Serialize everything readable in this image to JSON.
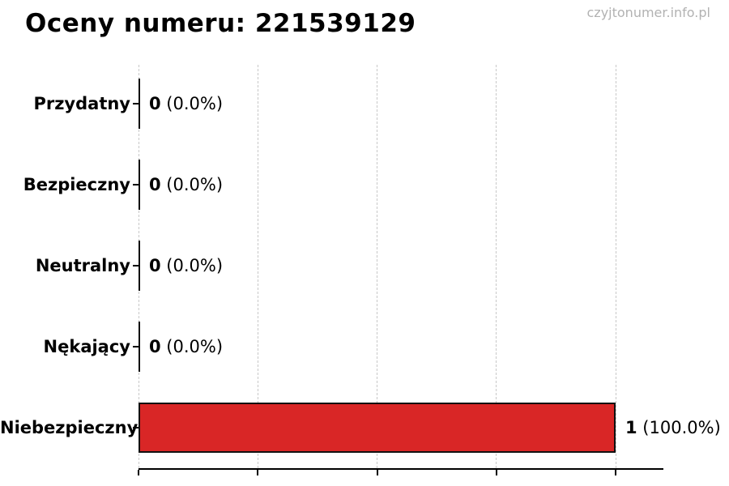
{
  "page": {
    "title": "Oceny numeru: 221539129",
    "watermark": "czyjtonumer.info.pl"
  },
  "chart_data": {
    "type": "bar",
    "orientation": "horizontal",
    "title": "Oceny numeru: 221539129",
    "categories": [
      "Przydatny",
      "Bezpieczny",
      "Neutralny",
      "Nękający",
      "Niebezpieczny"
    ],
    "values": [
      0,
      0,
      0,
      0,
      1
    ],
    "percent_labels": [
      "(0.0%)",
      "(0.0%)",
      "(0.0%)",
      "(0.0%)",
      "(100.0%)"
    ],
    "count_labels": [
      "0",
      "0",
      "0",
      "0",
      "1"
    ],
    "xlabel": "",
    "ylabel": "",
    "xlim": [
      0,
      1.1
    ],
    "xticks": [
      0,
      0.25,
      0.5,
      0.75,
      1.0
    ],
    "grid": true,
    "grid_style": "dashed",
    "legend": "none",
    "bar_color": "#d92626",
    "bar_border_color": "#111111",
    "grid_color": "#c8c8c8",
    "watermark_color": "#b2b2b2"
  }
}
